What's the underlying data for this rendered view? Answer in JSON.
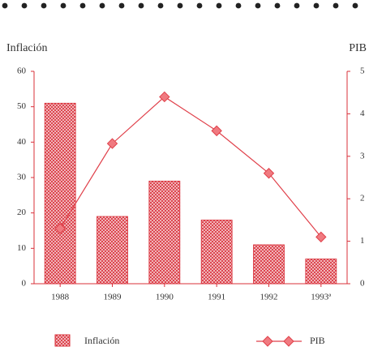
{
  "chart_data": {
    "type": "bar",
    "y_label": "Inflación",
    "y2_label": "PIB",
    "categories": [
      "1988",
      "1989",
      "1990",
      "1991",
      "1992",
      "1993ª"
    ],
    "series": [
      {
        "name": "Inflación",
        "type": "bar",
        "color": "#d9303a",
        "values": [
          51,
          19,
          29,
          18,
          11,
          7
        ]
      },
      {
        "name": "PIB",
        "type": "line",
        "axis": "y2",
        "color": "#e0404a",
        "values": [
          1.3,
          3.3,
          4.4,
          3.6,
          2.6,
          1.1
        ]
      }
    ],
    "ylim": [
      0,
      60
    ],
    "yticks": [
      0,
      10,
      20,
      30,
      40,
      50,
      60
    ],
    "y2lim": [
      0,
      5
    ],
    "y2ticks": [
      0,
      1,
      2,
      3,
      4,
      5
    ],
    "legend": "bottom"
  }
}
